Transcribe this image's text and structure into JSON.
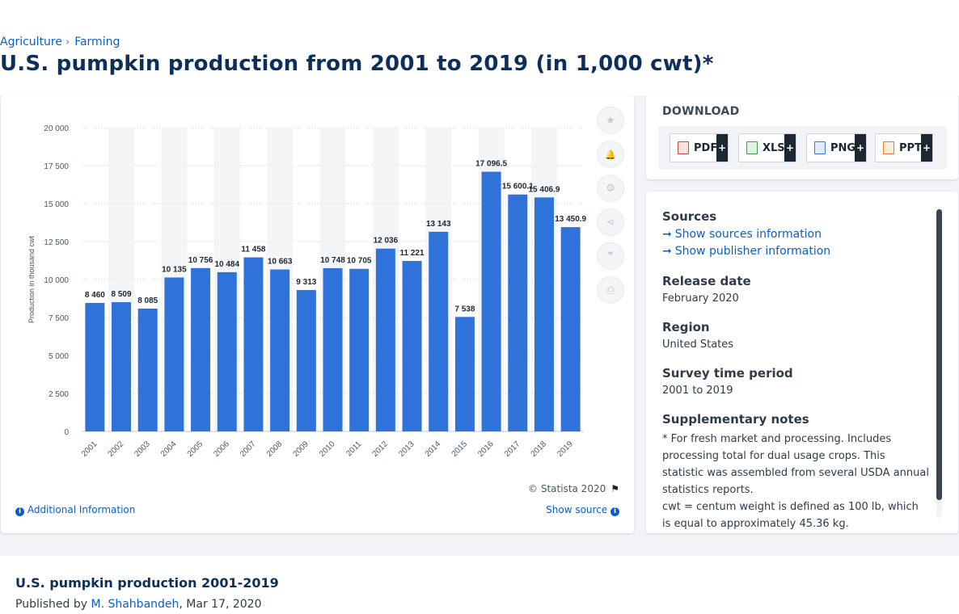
{
  "breadcrumb": {
    "items": [
      "Agriculture",
      "Farming"
    ],
    "separator": "›"
  },
  "page_title": "U.S. pumpkin production from 2001 to 2019 (in 1,000 cwt)*",
  "chart_footer": {
    "copyright": "© Statista 2020",
    "additional_info": "Additional Information",
    "show_source": "Show source"
  },
  "tools": [
    {
      "name": "favorite",
      "glyph": "★"
    },
    {
      "name": "notification",
      "glyph": "🔔"
    },
    {
      "name": "settings",
      "glyph": "⚙"
    },
    {
      "name": "share",
      "glyph": "⋖"
    },
    {
      "name": "cite",
      "glyph": "❞"
    },
    {
      "name": "print",
      "glyph": "⎙"
    }
  ],
  "download": {
    "title": "DOWNLOAD",
    "buttons": [
      {
        "label": "PDF",
        "color": "#d64541"
      },
      {
        "label": "XLS",
        "color": "#3d9b47"
      },
      {
        "label": "PNG",
        "color": "#3a7bd5"
      },
      {
        "label": "PPT",
        "color": "#e67e22"
      }
    ],
    "plus": "+"
  },
  "meta": {
    "sources_heading": "Sources",
    "show_sources": "Show sources information",
    "show_publisher": "Show publisher information",
    "release_heading": "Release date",
    "release_value": "February 2020",
    "region_heading": "Region",
    "region_value": "United States",
    "survey_heading": "Survey time period",
    "survey_value": "2001 to 2019",
    "notes_heading": "Supplementary notes",
    "notes_1": "* For fresh market and processing. Includes processing total for dual usage crops. This statistic was assembled from several USDA annual statistics reports.",
    "notes_2": "cwt = centum weight is defined as 100 lb, which is equal to approximately 45.36 kg."
  },
  "publication": {
    "title": "U.S. pumpkin production 2001-2019",
    "published_by": "Published by",
    "author": "M. Shahbandeh",
    "date": ", Mar 17, 2020"
  },
  "colors": {
    "bar": "#2f72d9",
    "band": "#f4f5f7",
    "grid": "#d6dbe1",
    "accent": "#0b5ec8"
  },
  "chart_data": {
    "type": "bar",
    "title": "U.S. pumpkin production from 2001 to 2019 (in 1,000 cwt)*",
    "xlabel": "",
    "ylabel": "Production in thousand cwt",
    "ylim": [
      0,
      20000
    ],
    "yticks": [
      0,
      2500,
      5000,
      7500,
      10000,
      12500,
      15000,
      17500,
      20000
    ],
    "ytick_labels": [
      "0",
      "2 500",
      "5 000",
      "7 500",
      "10 000",
      "12 500",
      "15 000",
      "17 500",
      "20 000"
    ],
    "categories": [
      "2001",
      "2002",
      "2003",
      "2004",
      "2005",
      "2006",
      "2007",
      "2008",
      "2009",
      "2010",
      "2011",
      "2012",
      "2013",
      "2014",
      "2015",
      "2016",
      "2017",
      "2018",
      "2019"
    ],
    "values": [
      8460,
      8509,
      8085,
      10135,
      10756,
      10484,
      11458,
      10663,
      9313,
      10748,
      10705,
      12036,
      11221,
      13143,
      7538,
      17096.5,
      15600.1,
      15406.9,
      13450.9
    ],
    "value_labels": [
      "8 460",
      "8 509",
      "8 085",
      "10 135",
      "10 756",
      "10 484",
      "11 458",
      "10 663",
      "9 313",
      "10 748",
      "10 705",
      "12 036",
      "11 221",
      "13 143",
      "7 538",
      "17 096.5",
      "15 600.1",
      "15 406.9",
      "13 450.9"
    ],
    "grid": true,
    "legend": "none"
  }
}
